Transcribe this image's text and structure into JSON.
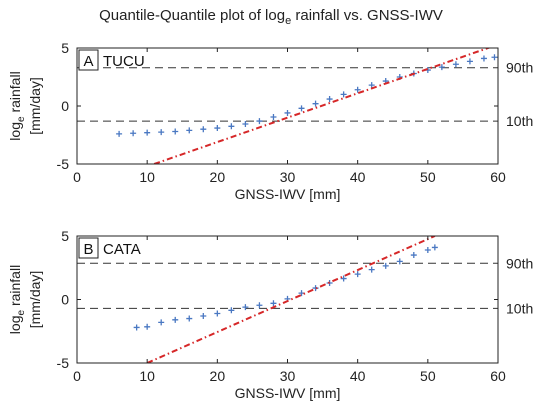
{
  "figure": {
    "title_prefix": "Quantile-Quantile plot of log",
    "title_subscript": "e",
    "title_suffix": " rainfall vs. GNSS-IWV"
  },
  "chart_data": [
    {
      "type": "scatter",
      "panel_letter": "A",
      "panel_name": "TUCU",
      "xlabel": "GNSS-IWV [mm]",
      "ylabel_prefix": "log",
      "ylabel_subscript": "e",
      "ylabel_suffix": " rainfall",
      "ylabel_line2": "[mm/day]",
      "xlim": [
        0,
        60
      ],
      "ylim": [
        -5,
        5
      ],
      "xticks": [
        0,
        10,
        20,
        30,
        40,
        50,
        60
      ],
      "yticks": [
        -5,
        0,
        5
      ],
      "grid": false,
      "marker": "+",
      "marker_color": "#4a78c2",
      "quantiles": [
        {
          "x": 6,
          "y": -2.4
        },
        {
          "x": 8,
          "y": -2.35
        },
        {
          "x": 10,
          "y": -2.3
        },
        {
          "x": 12,
          "y": -2.25
        },
        {
          "x": 14,
          "y": -2.2
        },
        {
          "x": 16,
          "y": -2.1
        },
        {
          "x": 18,
          "y": -2.0
        },
        {
          "x": 20,
          "y": -1.9
        },
        {
          "x": 22,
          "y": -1.75
        },
        {
          "x": 24,
          "y": -1.55
        },
        {
          "x": 26,
          "y": -1.3
        },
        {
          "x": 28,
          "y": -0.95
        },
        {
          "x": 30,
          "y": -0.6
        },
        {
          "x": 32,
          "y": -0.2
        },
        {
          "x": 34,
          "y": 0.2
        },
        {
          "x": 36,
          "y": 0.6
        },
        {
          "x": 38,
          "y": 1.0
        },
        {
          "x": 40,
          "y": 1.4
        },
        {
          "x": 42,
          "y": 1.8
        },
        {
          "x": 44,
          "y": 2.15
        },
        {
          "x": 46,
          "y": 2.5
        },
        {
          "x": 48,
          "y": 2.8
        },
        {
          "x": 50,
          "y": 3.1
        },
        {
          "x": 52,
          "y": 3.35
        },
        {
          "x": 54,
          "y": 3.6
        },
        {
          "x": 56,
          "y": 3.85
        },
        {
          "x": 58,
          "y": 4.1
        },
        {
          "x": 59.5,
          "y": 4.2
        }
      ],
      "reference_line": {
        "color": "#d62728",
        "points": [
          {
            "x": 11,
            "y": -5
          },
          {
            "x": 60,
            "y": 5.3
          }
        ]
      },
      "percentiles": [
        {
          "label": "90th",
          "y": 3.3
        },
        {
          "label": "10th",
          "y": -1.3
        }
      ]
    },
    {
      "type": "scatter",
      "panel_letter": "B",
      "panel_name": "CATA",
      "xlabel": "GNSS-IWV [mm]",
      "ylabel_prefix": "log",
      "ylabel_subscript": "e",
      "ylabel_suffix": " rainfall",
      "ylabel_line2": "[mm/day]",
      "xlim": [
        0,
        60
      ],
      "ylim": [
        -5,
        5
      ],
      "xticks": [
        0,
        10,
        20,
        30,
        40,
        50,
        60
      ],
      "yticks": [
        -5,
        0,
        5
      ],
      "grid": false,
      "marker": "+",
      "marker_color": "#4a78c2",
      "quantiles": [
        {
          "x": 8.5,
          "y": -2.2
        },
        {
          "x": 10,
          "y": -2.15
        },
        {
          "x": 12,
          "y": -1.8
        },
        {
          "x": 14,
          "y": -1.6
        },
        {
          "x": 16,
          "y": -1.5
        },
        {
          "x": 18,
          "y": -1.3
        },
        {
          "x": 20,
          "y": -1.1
        },
        {
          "x": 22,
          "y": -0.85
        },
        {
          "x": 24,
          "y": -0.6
        },
        {
          "x": 26,
          "y": -0.45
        },
        {
          "x": 28,
          "y": -0.3
        },
        {
          "x": 30,
          "y": 0.05
        },
        {
          "x": 32,
          "y": 0.5
        },
        {
          "x": 34,
          "y": 0.9
        },
        {
          "x": 36,
          "y": 1.3
        },
        {
          "x": 38,
          "y": 1.65
        },
        {
          "x": 40,
          "y": 2.0
        },
        {
          "x": 42,
          "y": 2.35
        },
        {
          "x": 44,
          "y": 2.65
        },
        {
          "x": 46,
          "y": 3.0
        },
        {
          "x": 48,
          "y": 3.5
        },
        {
          "x": 50,
          "y": 3.9
        },
        {
          "x": 51,
          "y": 4.1
        }
      ],
      "reference_line": {
        "color": "#d62728",
        "points": [
          {
            "x": 10,
            "y": -5
          },
          {
            "x": 51,
            "y": 5
          }
        ]
      },
      "percentiles": [
        {
          "label": "90th",
          "y": 2.85
        },
        {
          "label": "10th",
          "y": -0.7
        }
      ]
    }
  ]
}
